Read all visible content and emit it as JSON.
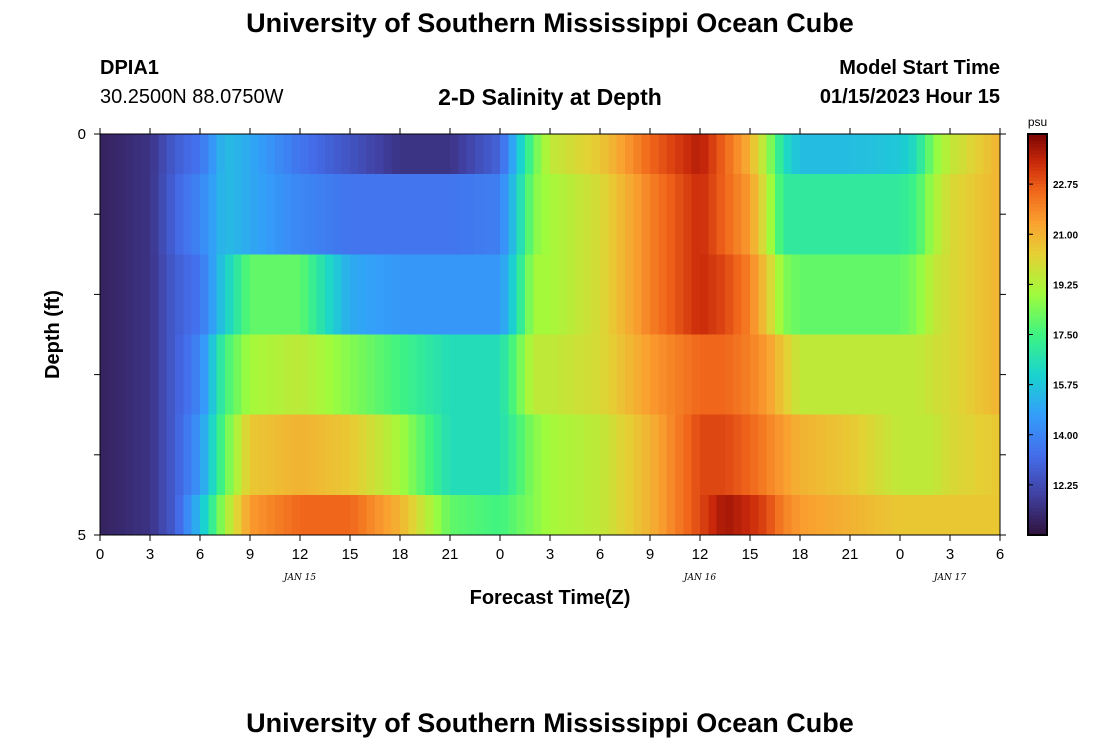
{
  "header": {
    "title": "University of Southern Mississippi Ocean Cube",
    "station_id": "DPIA1",
    "station_coords": "30.2500N  88.0750W",
    "plot_title": "2-D Salinity at Depth",
    "model_label": "Model Start Time",
    "model_time": "01/15/2023 Hour 15"
  },
  "footer": {
    "title": "University of Southern Mississippi Ocean Cube"
  },
  "chart_data": {
    "type": "heatmap",
    "title": "2-D Salinity at Depth",
    "xlabel": "Forecast Time(Z)",
    "ylabel": "Depth (ft)",
    "colorbar_label": "psu",
    "x_range_hours": [
      0,
      54
    ],
    "y_range_ft": [
      0,
      5
    ],
    "x_tick_labels": [
      "0",
      "3",
      "6",
      "9",
      "12",
      "15",
      "18",
      "21",
      "0",
      "3",
      "6",
      "9",
      "12",
      "15",
      "18",
      "21",
      "0",
      "3",
      "6"
    ],
    "y_tick_labels": [
      "0",
      "5"
    ],
    "date_labels": [
      {
        "text": "JAN 15",
        "hour": 12
      },
      {
        "text": "JAN 16",
        "hour": 36
      },
      {
        "text": "JAN 17",
        "hour": 51
      }
    ],
    "colorbar": {
      "min": 10.5,
      "max": 24.5,
      "tick_labels": [
        "12.25",
        "14.00",
        "15.75",
        "17.50",
        "19.25",
        "21.00",
        "22.75"
      ],
      "tick_values": [
        12.25,
        14.0,
        15.75,
        17.5,
        19.25,
        21.0,
        22.75
      ]
    },
    "depth_layers_ft": [
      "0.0-0.5",
      "0.5-1.5",
      "1.5-2.5",
      "2.5-3.5",
      "3.5-4.5",
      "4.5-5.0"
    ],
    "keyframes_hours": [
      0,
      3,
      4.5,
      6,
      7.5,
      9,
      12,
      15,
      18,
      21,
      24,
      25,
      26,
      27,
      30,
      33,
      36,
      37.5,
      39,
      40,
      41,
      42,
      45,
      48,
      49,
      50,
      51,
      54
    ],
    "salinity_psu": [
      [
        11.0,
        11.5,
        12.8,
        13.5,
        15.5,
        15.0,
        13.5,
        12.5,
        11.5,
        11.5,
        13.0,
        15.5,
        18.0,
        19.5,
        20.5,
        22.5,
        23.8,
        22.5,
        21.0,
        19.0,
        16.5,
        15.5,
        15.5,
        15.8,
        16.5,
        18.5,
        19.5,
        21.0
      ],
      [
        11.0,
        11.5,
        13.0,
        14.0,
        15.5,
        15.0,
        14.0,
        13.5,
        13.5,
        13.5,
        13.8,
        16.0,
        18.5,
        19.0,
        20.0,
        22.0,
        23.5,
        22.5,
        21.5,
        19.5,
        17.0,
        17.0,
        17.0,
        17.0,
        17.5,
        19.0,
        20.0,
        21.0
      ],
      [
        11.0,
        11.5,
        12.8,
        13.5,
        16.0,
        18.0,
        18.0,
        15.0,
        14.5,
        14.5,
        14.5,
        16.5,
        19.0,
        19.0,
        20.0,
        22.0,
        23.5,
        23.0,
        22.0,
        20.5,
        18.5,
        18.0,
        18.0,
        18.0,
        18.5,
        19.5,
        20.0,
        21.0
      ],
      [
        11.0,
        11.5,
        12.8,
        14.0,
        17.5,
        19.0,
        19.5,
        18.5,
        17.5,
        16.5,
        16.5,
        18.0,
        19.5,
        19.5,
        20.0,
        21.5,
        22.5,
        22.5,
        22.0,
        21.5,
        20.5,
        19.5,
        19.5,
        19.5,
        19.5,
        19.8,
        20.0,
        21.0
      ],
      [
        11.0,
        11.5,
        12.8,
        14.5,
        18.0,
        20.5,
        21.0,
        20.5,
        19.0,
        16.5,
        16.5,
        17.5,
        18.5,
        19.0,
        19.5,
        21.0,
        23.0,
        23.0,
        22.5,
        22.0,
        21.5,
        21.0,
        20.5,
        19.5,
        19.5,
        19.5,
        20.0,
        20.5
      ],
      [
        11.0,
        11.5,
        12.8,
        15.5,
        19.0,
        21.5,
        22.5,
        22.5,
        21.0,
        18.0,
        17.5,
        18.0,
        18.5,
        19.0,
        19.5,
        21.0,
        23.0,
        24.0,
        23.5,
        23.0,
        22.0,
        21.5,
        21.0,
        20.5,
        20.5,
        20.5,
        20.5,
        20.5
      ]
    ]
  }
}
